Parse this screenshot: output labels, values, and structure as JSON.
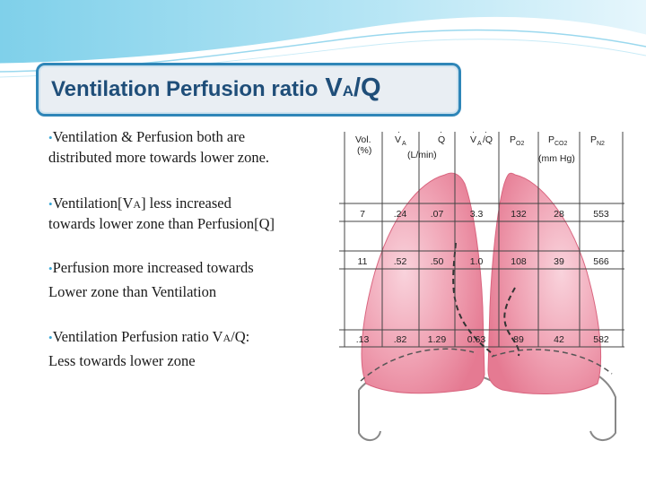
{
  "slide": {
    "title_main": "Ventilation Perfusion ratio",
    "title_v": "V",
    "title_sub": "A",
    "title_q": "/Q"
  },
  "bullets": [
    {
      "text": "Ventilation & Perfusion both are",
      "cont": "distributed more towards lower zone."
    },
    {
      "pre": "Ventilation[V",
      "sc": "A",
      "post": "] less increased",
      "cont": "towards lower zone than Perfusion[Q]"
    },
    {
      "text": "Perfusion more increased towards",
      "cont": "Lower zone than Ventilation"
    },
    {
      "pre": "Ventilation Perfusion ratio  V",
      "sc": "A",
      "post": "/Q:",
      "cont": "Less towards lower zone"
    }
  ],
  "table": {
    "headers": [
      "Vol.",
      "(%)",
      "V",
      "A",
      "Q",
      "V",
      "A",
      "/Q",
      "P",
      "O2",
      "P",
      "CO2",
      "P",
      "N2"
    ],
    "units": [
      "(L/min)",
      "(mm Hg)"
    ],
    "rows": [
      [
        "7",
        ".24",
        ".07",
        "3.3",
        "132",
        "28",
        "553"
      ],
      [
        "11",
        ".52",
        ".50",
        "1.0",
        "108",
        "39",
        "566"
      ],
      [
        ".13",
        ".82",
        "1.29",
        "0.63",
        "89",
        "42",
        "582"
      ]
    ]
  },
  "colors": {
    "title": "#1f4e79",
    "border": "#2f86b8",
    "bullet": "#3aa7d6",
    "lung": "#e57a92"
  }
}
